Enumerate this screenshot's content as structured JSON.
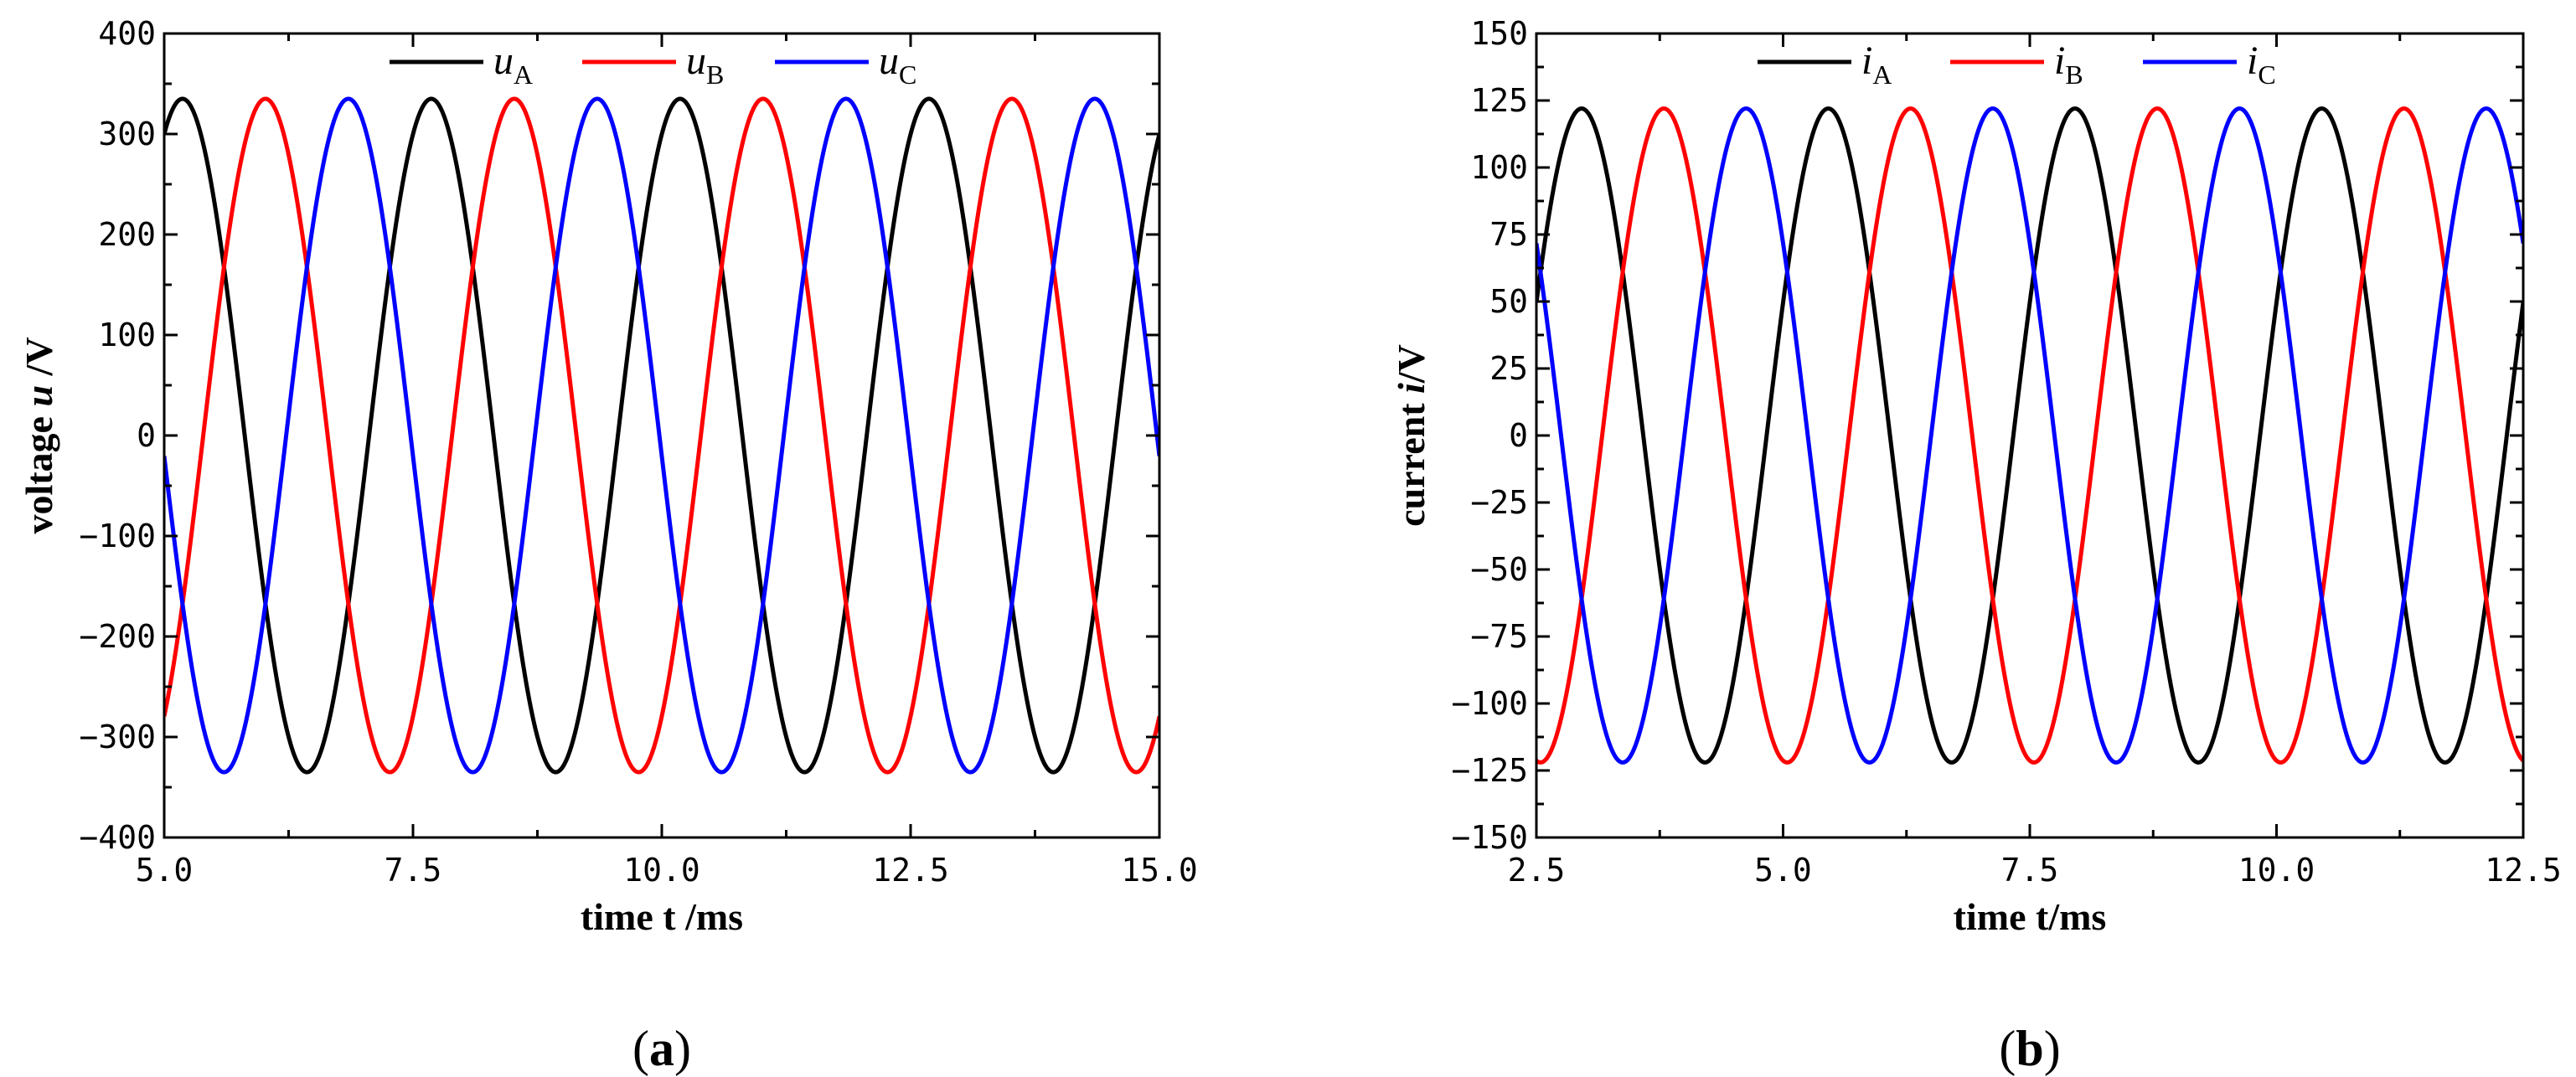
{
  "chart_data": [
    {
      "type": "line",
      "panel_label": "a",
      "xlabel": "time t /ms",
      "ylabel_prefix": "voltage ",
      "ylabel_var": "u",
      "ylabel_suffix": " /V",
      "xlim": [
        5.0,
        15.0
      ],
      "ylim": [
        -400,
        400
      ],
      "xticks": [
        5.0,
        7.5,
        10.0,
        12.5,
        15.0
      ],
      "xtick_labels": [
        "5.0",
        "7.5",
        "10.0",
        "12.5",
        "15.0"
      ],
      "yticks": [
        -400,
        -300,
        -200,
        -100,
        0,
        100,
        200,
        300,
        400
      ],
      "ytick_labels": [
        "−400",
        "−300",
        "−200",
        "−100",
        "0",
        "100",
        "200",
        "300",
        "400"
      ],
      "grid": false,
      "legend_position": "top-center",
      "series": [
        {
          "name": "uA",
          "legend_main": "u",
          "legend_sub": "A",
          "color": "#000000",
          "amplitude": 335,
          "frequency_hz": 400,
          "phase_deg": 63.5
        },
        {
          "name": "uB",
          "legend_main": "u",
          "legend_sub": "B",
          "color": "#ff0000",
          "amplitude": 335,
          "frequency_hz": 400,
          "phase_deg": -56.5
        },
        {
          "name": "uC",
          "legend_main": "u",
          "legend_sub": "C",
          "color": "#0000ff",
          "amplitude": 335,
          "frequency_hz": 400,
          "phase_deg": -176.5
        }
      ]
    },
    {
      "type": "line",
      "panel_label": "b",
      "xlabel": "time t/ms",
      "ylabel_prefix": "current ",
      "ylabel_var": "i",
      "ylabel_suffix": "/V",
      "xlim": [
        2.5,
        12.5
      ],
      "ylim": [
        -150,
        150
      ],
      "xticks": [
        2.5,
        5.0,
        7.5,
        10.0,
        12.5
      ],
      "xtick_labels": [
        "2.5",
        "5.0",
        "7.5",
        "10.0",
        "12.5"
      ],
      "yticks": [
        -150,
        -125,
        -100,
        -75,
        -50,
        -25,
        0,
        25,
        50,
        75,
        100,
        125,
        150
      ],
      "ytick_labels": [
        "−150",
        "−125",
        "−100",
        "−75",
        "−50",
        "−25",
        "0",
        "25",
        "50",
        "75",
        "100",
        "125",
        "150"
      ],
      "grid": false,
      "legend_position": "top-center",
      "series": [
        {
          "name": "iA",
          "legend_main": "i",
          "legend_sub": "A",
          "color": "#000000",
          "amplitude": 122,
          "frequency_hz": 400,
          "phase_deg": 24
        },
        {
          "name": "iB",
          "legend_main": "i",
          "legend_sub": "B",
          "color": "#ff0000",
          "amplitude": 122,
          "frequency_hz": 400,
          "phase_deg": -96
        },
        {
          "name": "iC",
          "legend_main": "i",
          "legend_sub": "C",
          "color": "#0000ff",
          "amplitude": 122,
          "frequency_hz": 400,
          "phase_deg": 144
        }
      ]
    }
  ]
}
